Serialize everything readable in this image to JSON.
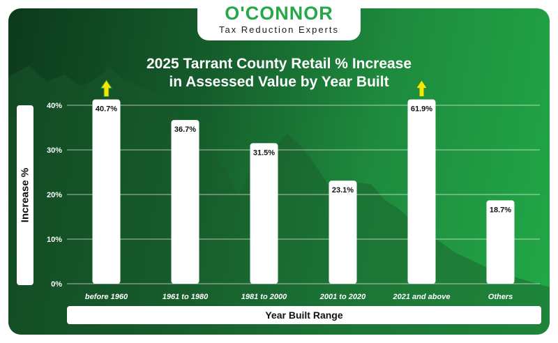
{
  "logo": {
    "name": "O'CONNOR",
    "tagline": "Tax Reduction Experts"
  },
  "colors": {
    "bar": "#ffffff",
    "grid": "#ffffff",
    "logo_green": "#24a848",
    "arrow": "#f5e700",
    "arrow_stroke": "#1e8a3d"
  },
  "chart_data": {
    "type": "bar",
    "title": "2025 Tarrant County Retail % Increase in Assessed Value by Year Built",
    "title_lines": [
      "2025 Tarrant County Retail % Increase",
      "in Assessed Value by Year Built"
    ],
    "xlabel": "Year Built Range",
    "ylabel": "Increase %",
    "categories": [
      "before 1960",
      "1961 to 1980",
      "1981 to 2000",
      "2001 to 2020",
      "2021 and above",
      "Others"
    ],
    "values": [
      40.7,
      36.7,
      31.5,
      23.1,
      61.9,
      18.7
    ],
    "data_labels": [
      "40.7%",
      "36.7%",
      "31.5%",
      "23.1%",
      "61.9%",
      "18.7%"
    ],
    "yticks": [
      0,
      10,
      20,
      30,
      40
    ],
    "ytick_labels": [
      "0%",
      "10%",
      "20%",
      "30%",
      "40%"
    ],
    "ylim": [
      0,
      40
    ],
    "grid": true,
    "clipped_bar_indicator": "up-arrow above 2021 and above bar"
  }
}
